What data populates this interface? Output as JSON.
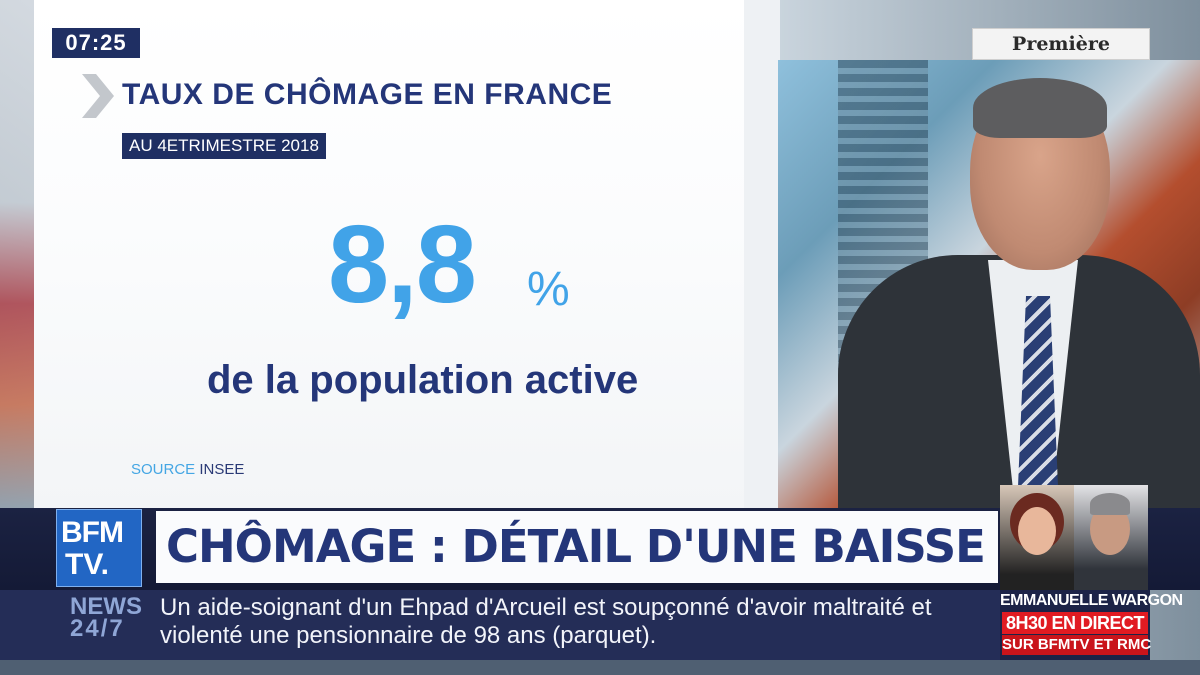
{
  "clock": "07:25",
  "show_logo": "Première édition",
  "graphic": {
    "title": "TAUX DE CHÔMAGE EN FRANCE",
    "subtitle": "AU 4ETRIMESTRE 2018",
    "value": "8,8",
    "unit": "%",
    "caption": "de la population active",
    "source_label": "SOURCE",
    "source_value": "INSEE"
  },
  "channel_logo": {
    "line1": "BFM",
    "line2": "TV."
  },
  "headline": {
    "text": "CHÔMAGE : DÉTAIL D'UNE BAISSE RECORD",
    "dot": "."
  },
  "ticker": {
    "label_line1": "NEWS",
    "label_line2": "24/7",
    "text": "Un aide-soignant d'un Ehpad d'Arcueil est soupçonné d'avoir maltraité et violenté une pensionnaire de 98 ans (parquet)."
  },
  "promo": {
    "guest": "EMMANUELLE WARGON",
    "time": "8H30 EN DIRECT",
    "channels": "SUR BFMTV ET RMC"
  },
  "colors": {
    "navy": "#243679",
    "accent_blue": "#41a3e8",
    "ticker_bg": "#242d57",
    "promo_red": "#e11b22",
    "headline_dot": "#f5a623"
  }
}
